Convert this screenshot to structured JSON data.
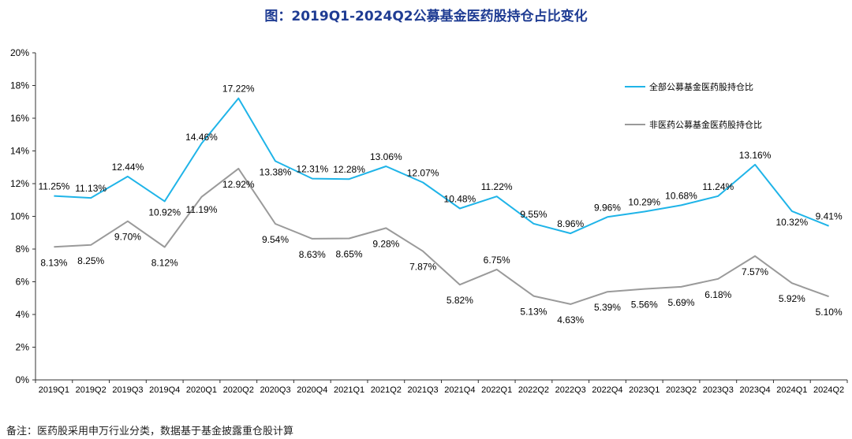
{
  "chart_data": {
    "type": "line",
    "title": "图：2019Q1-2024Q2公募基金医药股持仓占比变化",
    "categories": [
      "2019Q1",
      "2019Q2",
      "2019Q3",
      "2019Q4",
      "2020Q1",
      "2020Q2",
      "2020Q3",
      "2020Q4",
      "2021Q1",
      "2021Q2",
      "2021Q3",
      "2021Q4",
      "2022Q1",
      "2022Q2",
      "2022Q3",
      "2022Q4",
      "2023Q1",
      "2023Q2",
      "2023Q3",
      "2023Q4",
      "2024Q1",
      "2024Q2"
    ],
    "series": [
      {
        "name": "全部公募基金医药股持仓比",
        "color": "#1fb4e8",
        "values": [
          11.25,
          11.13,
          12.44,
          10.92,
          14.46,
          17.22,
          13.38,
          12.31,
          12.28,
          13.06,
          12.07,
          10.48,
          11.22,
          9.55,
          8.96,
          9.96,
          10.29,
          10.68,
          11.24,
          13.16,
          10.32,
          9.41
        ],
        "labels": [
          "11.25%",
          "11.13%",
          "12.44%",
          "10.92%",
          "14.46%",
          "17.22%",
          "13.38%",
          "12.31%",
          "12.28%",
          "13.06%",
          "12.07%",
          "10.48%",
          "11.22%",
          "9.55%",
          "8.96%",
          "9.96%",
          "10.29%",
          "10.68%",
          "11.24%",
          "13.16%",
          "10.32%",
          "9.41%"
        ]
      },
      {
        "name": "非医药公募基金医药股持仓比",
        "color": "#9a9a9a",
        "values": [
          8.13,
          8.25,
          9.7,
          8.12,
          11.19,
          12.92,
          9.54,
          8.63,
          8.65,
          9.28,
          7.87,
          5.82,
          6.75,
          5.13,
          4.63,
          5.39,
          5.56,
          5.69,
          6.18,
          7.57,
          5.92,
          5.1
        ],
        "labels": [
          "8.13%",
          "8.25%",
          "9.70%",
          "8.12%",
          "11.19%",
          "12.92%",
          "9.54%",
          "8.63%",
          "8.65%",
          "9.28%",
          "7.87%",
          "5.82%",
          "6.75%",
          "5.13%",
          "4.63%",
          "5.39%",
          "5.56%",
          "5.69%",
          "6.18%",
          "7.57%",
          "5.92%",
          "5.10%"
        ]
      }
    ],
    "ylim": [
      0,
      20
    ],
    "yticks": [
      0,
      2,
      4,
      6,
      8,
      10,
      12,
      14,
      16,
      18,
      20
    ],
    "ytick_labels": [
      "0%",
      "2%",
      "4%",
      "6%",
      "8%",
      "10%",
      "12%",
      "14%",
      "16%",
      "18%",
      "20%"
    ],
    "xlabel": "",
    "ylabel": "",
    "grid": false,
    "legend_position": "top-right"
  },
  "note": "备注：医药股采用申万行业分类，数据基于基金披露重仓股计算"
}
